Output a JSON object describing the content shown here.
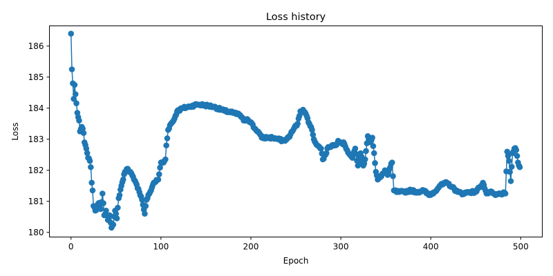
{
  "chart_data": {
    "type": "line",
    "title": "Loss history",
    "xlabel": "Epoch",
    "ylabel": "Loss",
    "xlim": [
      -24,
      524
    ],
    "ylim": [
      179.85,
      186.65
    ],
    "xticks": [
      0,
      100,
      200,
      300,
      400,
      500
    ],
    "yticks": [
      180,
      181,
      182,
      183,
      184,
      185,
      186
    ],
    "grid": false,
    "legend": "none",
    "series_color": "#1f77b4",
    "marker": "circle",
    "keypoints": [
      [
        0,
        186.4
      ],
      [
        1,
        185.25
      ],
      [
        2,
        184.8
      ],
      [
        3,
        184.3
      ],
      [
        4,
        184.75
      ],
      [
        5,
        184.45
      ],
      [
        7,
        183.85
      ],
      [
        9,
        183.6
      ],
      [
        10,
        183.25
      ],
      [
        12,
        183.4
      ],
      [
        14,
        183.2
      ],
      [
        15,
        182.9
      ],
      [
        17,
        182.7
      ],
      [
        19,
        182.4
      ],
      [
        21,
        182.3
      ],
      [
        22,
        182.1
      ],
      [
        23,
        181.6
      ],
      [
        24,
        181.35
      ],
      [
        25,
        180.85
      ],
      [
        27,
        180.7
      ],
      [
        29,
        180.8
      ],
      [
        31,
        180.95
      ],
      [
        33,
        180.75
      ],
      [
        35,
        181.25
      ],
      [
        37,
        180.55
      ],
      [
        39,
        180.7
      ],
      [
        41,
        180.4
      ],
      [
        43,
        180.55
      ],
      [
        45,
        180.15
      ],
      [
        47,
        180.25
      ],
      [
        49,
        180.7
      ],
      [
        51,
        180.45
      ],
      [
        53,
        181.1
      ],
      [
        56,
        181.5
      ],
      [
        60,
        181.95
      ],
      [
        63,
        182.05
      ],
      [
        66,
        181.95
      ],
      [
        70,
        181.7
      ],
      [
        75,
        181.4
      ],
      [
        79,
        181.05
      ],
      [
        82,
        180.6
      ],
      [
        84,
        181.05
      ],
      [
        88,
        181.3
      ],
      [
        92,
        181.6
      ],
      [
        97,
        181.7
      ],
      [
        100,
        182.25
      ],
      [
        103,
        182.25
      ],
      [
        105,
        182.35
      ],
      [
        106,
        182.8
      ],
      [
        108,
        183.3
      ],
      [
        110,
        183.45
      ],
      [
        114,
        183.6
      ],
      [
        118,
        183.9
      ],
      [
        124,
        184.0
      ],
      [
        132,
        184.05
      ],
      [
        140,
        184.12
      ],
      [
        148,
        184.1
      ],
      [
        158,
        184.05
      ],
      [
        170,
        183.92
      ],
      [
        180,
        183.85
      ],
      [
        188,
        183.78
      ],
      [
        192,
        183.6
      ],
      [
        196,
        183.65
      ],
      [
        200,
        183.55
      ],
      [
        204,
        183.35
      ],
      [
        208,
        183.25
      ],
      [
        212,
        183.05
      ],
      [
        218,
        183.05
      ],
      [
        224,
        183.05
      ],
      [
        230,
        183.0
      ],
      [
        236,
        182.95
      ],
      [
        240,
        183.0
      ],
      [
        244,
        183.15
      ],
      [
        248,
        183.35
      ],
      [
        252,
        183.5
      ],
      [
        255,
        183.9
      ],
      [
        258,
        183.95
      ],
      [
        262,
        183.75
      ],
      [
        265,
        183.5
      ],
      [
        268,
        183.3
      ],
      [
        270,
        183.0
      ],
      [
        274,
        182.8
      ],
      [
        278,
        182.7
      ],
      [
        280,
        182.35
      ],
      [
        283,
        182.5
      ],
      [
        286,
        182.75
      ],
      [
        290,
        182.8
      ],
      [
        294,
        182.8
      ],
      [
        297,
        182.95
      ],
      [
        300,
        182.9
      ],
      [
        304,
        182.85
      ],
      [
        307,
        182.65
      ],
      [
        310,
        182.5
      ],
      [
        313,
        182.4
      ],
      [
        316,
        182.7
      ],
      [
        319,
        182.15
      ],
      [
        322,
        182.55
      ],
      [
        325,
        182.15
      ],
      [
        327,
        182.35
      ],
      [
        330,
        183.1
      ],
      [
        333,
        182.9
      ],
      [
        335,
        183.05
      ],
      [
        337,
        182.55
      ],
      [
        339,
        181.95
      ],
      [
        341,
        181.7
      ],
      [
        345,
        181.8
      ],
      [
        349,
        182.0
      ],
      [
        352,
        181.85
      ],
      [
        355,
        182.1
      ],
      [
        357,
        182.25
      ],
      [
        359,
        181.35
      ],
      [
        363,
        181.3
      ],
      [
        370,
        181.3
      ],
      [
        378,
        181.35
      ],
      [
        385,
        181.3
      ],
      [
        392,
        181.35
      ],
      [
        398,
        181.2
      ],
      [
        404,
        181.3
      ],
      [
        410,
        181.5
      ],
      [
        418,
        181.6
      ],
      [
        424,
        181.45
      ],
      [
        430,
        181.3
      ],
      [
        436,
        181.25
      ],
      [
        442,
        181.3
      ],
      [
        450,
        181.3
      ],
      [
        454,
        181.45
      ],
      [
        458,
        181.6
      ],
      [
        462,
        181.25
      ],
      [
        466,
        181.3
      ],
      [
        472,
        181.2
      ],
      [
        478,
        181.25
      ],
      [
        483,
        181.25
      ],
      [
        485,
        182.6
      ],
      [
        487,
        182.3
      ],
      [
        489,
        181.65
      ],
      [
        491,
        182.55
      ],
      [
        493,
        182.7
      ],
      [
        495,
        182.65
      ],
      [
        497,
        182.25
      ],
      [
        499,
        182.1
      ]
    ]
  }
}
